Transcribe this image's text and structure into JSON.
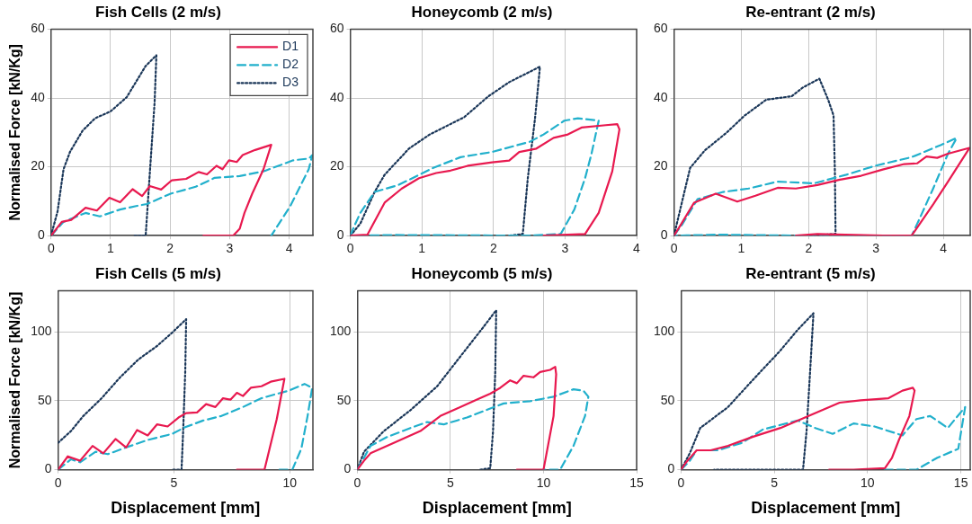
{
  "chart_data": [
    {
      "type": "line",
      "title": "Fish Cells (2 m/s)",
      "ylabel": "Normalised Force [kN/Kg]",
      "xlim": [
        0,
        4.4
      ],
      "xticks": [
        0,
        1,
        2,
        3,
        4
      ],
      "ylim": [
        0,
        60
      ],
      "yticks": [
        0,
        20,
        40,
        60
      ],
      "grid": true,
      "legend": "top right",
      "marker": "none",
      "series": [
        {
          "name": "D1",
          "color": "#e8194f",
          "line_style": "solid",
          "x": [
            0,
            0.18,
            0.34,
            0.58,
            0.77,
            0.98,
            1.16,
            1.37,
            1.53,
            1.66,
            1.85,
            2.03,
            2.27,
            2.48,
            2.62,
            2.78,
            2.88,
            2.99,
            3.12,
            3.22,
            3.43,
            3.7,
            3.57,
            3.38,
            3.25,
            3.17,
            3.06,
            2.56
          ],
          "values": [
            0,
            4,
            4.6,
            8.1,
            7.3,
            11,
            9.7,
            13.5,
            11.5,
            14.4,
            13.4,
            16.1,
            16.5,
            18.5,
            17.8,
            20.3,
            19.3,
            21.9,
            21.4,
            23.4,
            24.9,
            26.4,
            19.3,
            12.2,
            6.6,
            2,
            0,
            0
          ]
        },
        {
          "name": "D2",
          "color": "#22b0cc",
          "line_style": "dashed",
          "x": [
            0,
            0.21,
            0.58,
            0.82,
            1.16,
            1.43,
            1.61,
            2.01,
            2.43,
            2.75,
            3.17,
            3.59,
            4.07,
            4.33,
            4.39,
            4.33,
            4.02,
            3.7
          ],
          "values": [
            0,
            4,
            6.6,
            5.6,
            7.6,
            8.6,
            9.2,
            12.2,
            14.2,
            16.8,
            17.3,
            18.8,
            21.9,
            22.4,
            23.4,
            19.3,
            8.6,
            0
          ]
        },
        {
          "name": "D3",
          "color": "#1a3658",
          "line_style": "dotted",
          "x": [
            0,
            0.11,
            0.21,
            0.32,
            0.53,
            0.74,
            1,
            1.27,
            1.59,
            1.77,
            1.74,
            1.66,
            1.59,
            1.37
          ],
          "values": [
            0,
            7.1,
            19.3,
            24.4,
            30.5,
            34.1,
            36.1,
            40.2,
            49.3,
            52.4,
            38.7,
            18.3,
            0,
            0
          ]
        }
      ]
    },
    {
      "type": "line",
      "title": "Honeycomb (2 m/s)",
      "xlim": [
        0,
        4
      ],
      "xticks": [
        0,
        1,
        2,
        3,
        4
      ],
      "ylim": [
        0,
        60
      ],
      "yticks": [
        0,
        20,
        40,
        60
      ],
      "grid": true,
      "marker": "none",
      "series": [
        {
          "color": "#e8194f",
          "line_style": "solid",
          "x": [
            0,
            0.24,
            0.48,
            0.72,
            0.96,
            1.2,
            1.4,
            1.64,
            1.98,
            2.22,
            2.36,
            2.6,
            2.84,
            3.04,
            3.23,
            3.57,
            3.73,
            3.76,
            3.66,
            3.47,
            3.28,
            2.7
          ],
          "values": [
            0,
            0.3,
            9.6,
            13.7,
            16.7,
            18.2,
            18.9,
            20.3,
            21.3,
            21.8,
            24.3,
            25.3,
            28.4,
            29.4,
            31.4,
            32.1,
            32.4,
            30.9,
            18.7,
            6.6,
            0.5,
            0
          ]
        },
        {
          "color": "#22b0cc",
          "line_style": "dashed",
          "x": [
            0,
            0.05,
            0.14,
            0.34,
            0.67,
            1.16,
            1.54,
            1.98,
            2.51,
            2.7,
            2.99,
            3.18,
            3.47,
            3.37,
            3.28,
            3.13,
            2.94,
            2.51,
            0.63,
            0.1
          ],
          "values": [
            0,
            2.5,
            6.6,
            12.7,
            14.7,
            19.7,
            22.8,
            24.3,
            27.3,
            29.4,
            33.4,
            34.1,
            33.4,
            23.8,
            16.7,
            7.6,
            0.5,
            0,
            0.2,
            0
          ]
        },
        {
          "color": "#1a3658",
          "line_style": "dotted",
          "x": [
            0,
            0.14,
            0.34,
            0.48,
            0.82,
            1.11,
            1.59,
            1.93,
            2.22,
            2.65,
            2.58,
            2.48,
            2.41,
            2.22
          ],
          "values": [
            0,
            3.5,
            12.7,
            17.7,
            25.3,
            29.4,
            34.4,
            40.5,
            44.6,
            49.1,
            33.9,
            16.7,
            0.5,
            0
          ]
        }
      ]
    },
    {
      "type": "line",
      "title": "Re-entrant (2 m/s)",
      "xlim": [
        0,
        4.4
      ],
      "xticks": [
        0,
        1,
        2,
        3,
        4
      ],
      "ylim": [
        0,
        60
      ],
      "yticks": [
        0,
        20,
        40,
        60
      ],
      "grid": true,
      "marker": "none",
      "series": [
        {
          "color": "#e8194f",
          "line_style": "solid",
          "x": [
            0,
            0.08,
            0.3,
            0.62,
            0.94,
            1.21,
            1.54,
            1.81,
            2.13,
            2.45,
            2.78,
            3.1,
            3.42,
            3.61,
            3.75,
            3.91,
            4.07,
            4.39,
            4.07,
            3.85,
            3.53,
            3.1,
            2.13,
            1.81
          ],
          "values": [
            0,
            2.5,
            9.6,
            12.2,
            9.9,
            11.6,
            13.9,
            13.7,
            14.7,
            16.2,
            17.4,
            19.2,
            20.8,
            21,
            23,
            22.6,
            23.8,
            25.5,
            15.7,
            9.1,
            0,
            0,
            0.5,
            0
          ]
        },
        {
          "color": "#22b0cc",
          "line_style": "dashed",
          "x": [
            0,
            0.13,
            0.35,
            0.73,
            1.11,
            1.54,
            2.08,
            2.56,
            2.99,
            3.53,
            3.96,
            4.2,
            4.07,
            3.85,
            3.64,
            3.53,
            1.91,
            0.67,
            0.03
          ],
          "values": [
            0,
            3.5,
            10.6,
            12.7,
            13.7,
            15.7,
            15.2,
            17.7,
            20.3,
            22.8,
            26.3,
            28.4,
            23.8,
            13.7,
            4.6,
            0,
            0,
            0.3,
            0
          ]
        },
        {
          "color": "#1a3658",
          "line_style": "dotted",
          "x": [
            0,
            0.08,
            0.24,
            0.46,
            0.78,
            1.05,
            1.37,
            1.75,
            1.91,
            2.16,
            2.29,
            2.37,
            2.39,
            2.4,
            2.02
          ],
          "values": [
            0,
            6.6,
            19.7,
            24.8,
            29.9,
            34.9,
            39.5,
            40.5,
            43,
            45.6,
            39.5,
            34.9,
            18.7,
            0.5,
            0
          ]
        }
      ]
    },
    {
      "type": "line",
      "title": "Fish Cells (5 m/s)",
      "xlabel": "Displacement [mm]",
      "ylabel": "Normalised Force [kN/Kg]",
      "xlim": [
        0,
        11
      ],
      "xticks": [
        0,
        5,
        10
      ],
      "ylim": [
        0,
        130
      ],
      "yticks": [
        0,
        50,
        100
      ],
      "grid": true,
      "marker": "none",
      "series": [
        {
          "color": "#e8194f",
          "line_style": "solid",
          "x": [
            0,
            0.42,
            0.95,
            1.49,
            1.95,
            2.48,
            2.94,
            3.41,
            3.87,
            4.27,
            4.73,
            5.2,
            5.53,
            6,
            6.39,
            6.79,
            7.12,
            7.45,
            7.72,
            7.98,
            8.32,
            8.78,
            9.18,
            9.77,
            9.44,
            8.91,
            7.72
          ],
          "values": [
            0,
            9.7,
            6.5,
            17.3,
            11.9,
            22.3,
            16.2,
            28.8,
            24.9,
            32.9,
            31.4,
            37.9,
            41.1,
            41.6,
            47.6,
            45.5,
            51.9,
            50.9,
            55.8,
            53.5,
            59.5,
            60.6,
            63.9,
            66,
            36.8,
            0,
            0
          ]
        },
        {
          "color": "#22b0cc",
          "line_style": "dashed",
          "x": [
            0,
            0.56,
            0.95,
            1.62,
            2.15,
            2.94,
            3.87,
            4.93,
            5.46,
            6.26,
            7.05,
            7.98,
            8.78,
            9.38,
            9.97,
            10.64,
            10.97,
            10.77,
            10.5,
            10.11,
            9.44
          ],
          "values": [
            0,
            7.6,
            5.4,
            13,
            11.3,
            16.2,
            21.6,
            26,
            30.7,
            35.7,
            39,
            45.5,
            51.9,
            54.8,
            57.4,
            62.3,
            59.5,
            39,
            15.2,
            0,
            0
          ]
        },
        {
          "color": "#1a3658",
          "line_style": "dotted",
          "x": [
            0,
            0.56,
            1.09,
            1.88,
            2.68,
            3.47,
            4.27,
            4.93,
            5.53,
            5.49,
            5.4,
            5.33,
            4.93
          ],
          "values": [
            19.5,
            28.1,
            39,
            51.9,
            67.1,
            80.1,
            89.8,
            99.6,
            109.3,
            71.4,
            28.1,
            0,
            0
          ]
        }
      ]
    },
    {
      "type": "line",
      "title": "Honeycomb (5 m/s)",
      "xlabel": "Displacement [mm]",
      "xlim": [
        0,
        15
      ],
      "xticks": [
        0,
        5,
        10,
        15
      ],
      "ylim": [
        0,
        130
      ],
      "yticks": [
        0,
        50,
        100
      ],
      "grid": true,
      "marker": "none",
      "series": [
        {
          "color": "#e8194f",
          "line_style": "solid",
          "x": [
            0,
            0.36,
            0.71,
            1.96,
            3.39,
            4.46,
            5.36,
            6.43,
            7.14,
            7.68,
            8.21,
            8.57,
            8.93,
            9.46,
            9.82,
            10.36,
            10.63,
            10.68,
            10.54,
            10,
            8.57
          ],
          "values": [
            0,
            6.5,
            11.9,
            19.5,
            28.1,
            39,
            44.4,
            50.9,
            55.2,
            59.5,
            64.9,
            62.8,
            68.2,
            67.1,
            71,
            72.5,
            74.7,
            69.3,
            39,
            0,
            0
          ]
        },
        {
          "color": "#22b0cc",
          "line_style": "dashed",
          "x": [
            0,
            0.36,
            0.71,
            1.61,
            2.86,
            3.75,
            4.64,
            5.89,
            7.14,
            7.86,
            9.29,
            10.54,
            11.61,
            12.14,
            12.41,
            12.23,
            11.61,
            10.89,
            10
          ],
          "values": [
            0,
            8.7,
            17.3,
            23.8,
            30.3,
            34.6,
            32.9,
            37.9,
            44.4,
            48.1,
            49.8,
            53,
            58.4,
            57.4,
            53,
            39,
            17.3,
            0,
            0
          ]
        },
        {
          "color": "#1a3658",
          "line_style": "dotted",
          "x": [
            0,
            0.36,
            1.43,
            2.86,
            4.29,
            5.54,
            6.79,
            7.46,
            7.41,
            7.29,
            7.14,
            6.61
          ],
          "values": [
            0,
            13,
            28.1,
            43.3,
            60.6,
            82.3,
            103.9,
            115.8,
            71.4,
            28.1,
            1.1,
            0
          ]
        }
      ]
    },
    {
      "type": "line",
      "title": "Re-entrant (5 m/s)",
      "xlabel": "Displacement [mm]",
      "xlim": [
        0,
        15.5
      ],
      "xticks": [
        0,
        5,
        10,
        15
      ],
      "ylim": [
        0,
        130
      ],
      "yticks": [
        0,
        50,
        100
      ],
      "grid": true,
      "marker": "none",
      "series": [
        {
          "color": "#e8194f",
          "line_style": "solid",
          "x": [
            0,
            0.28,
            0.84,
            1.59,
            2.52,
            3.83,
            5.33,
            7.01,
            8.5,
            9.63,
            11.12,
            11.87,
            12.43,
            12.52,
            12.24,
            11.68,
            11.31,
            10.93,
            9.25,
            7.94
          ],
          "values": [
            0,
            5.4,
            14.1,
            14.1,
            17.3,
            23.8,
            30.3,
            40,
            48.7,
            50.4,
            51.9,
            57.4,
            59.5,
            57.4,
            39,
            21.6,
            8.7,
            1.1,
            0,
            0
          ]
        },
        {
          "color": "#22b0cc",
          "line_style": "dashed",
          "x": [
            0,
            0.47,
            0.84,
            1.96,
            3.27,
            4.39,
            5.33,
            6.26,
            7.2,
            8.13,
            9.25,
            10.37,
            11.87,
            12.62,
            13.36,
            14.3,
            15.23,
            14.86,
            13.74,
            12.62,
            10.75
          ],
          "values": [
            0,
            6.5,
            14.1,
            14.1,
            19.5,
            29.2,
            32.5,
            35.7,
            30.3,
            26,
            33.6,
            31.4,
            24.9,
            36.8,
            39,
            30.3,
            45.5,
            15.2,
            8.7,
            0,
            0
          ]
        },
        {
          "color": "#1a3658",
          "line_style": "dotted",
          "x": [
            0,
            0.47,
            1.03,
            2.52,
            3.83,
            5.33,
            6.26,
            7.1,
            6.92,
            6.73,
            6.54,
            1.78
          ],
          "values": [
            0,
            11.9,
            30.3,
            45.5,
            64.9,
            86.6,
            101.7,
            113.6,
            71.4,
            28.1,
            0,
            0
          ]
        }
      ]
    }
  ]
}
